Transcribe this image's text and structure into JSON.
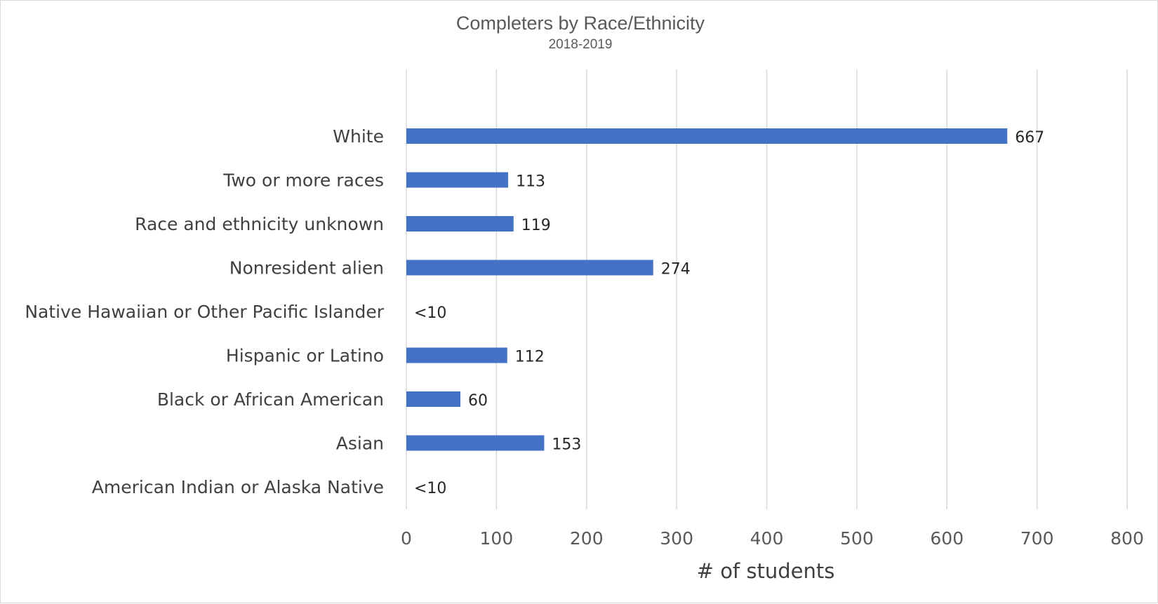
{
  "chart_data": {
    "type": "bar",
    "orientation": "horizontal",
    "title": "Completers by Race/Ethnicity",
    "subtitle": "2018-2019",
    "xlabel": "# of students",
    "ylabel": "",
    "xlim": [
      0,
      800
    ],
    "xticks": [
      "0",
      "100",
      "200",
      "300",
      "400",
      "500",
      "600",
      "700",
      "800"
    ],
    "grid": true,
    "legend": "none",
    "bar_color": "#4472C4",
    "categories": [
      "White",
      "Two or more races",
      "Race and ethnicity unknown",
      "Nonresident alien",
      "Native Hawaiian or Other Pacific Islander",
      "Hispanic or Latino",
      "Black or African American",
      "Asian",
      "American Indian or Alaska Native"
    ],
    "values": [
      667,
      113,
      119,
      274,
      null,
      112,
      60,
      153,
      null
    ],
    "data_labels": [
      "667",
      "113",
      "119",
      "274",
      "<10",
      "112",
      "60",
      "153",
      "<10"
    ]
  }
}
